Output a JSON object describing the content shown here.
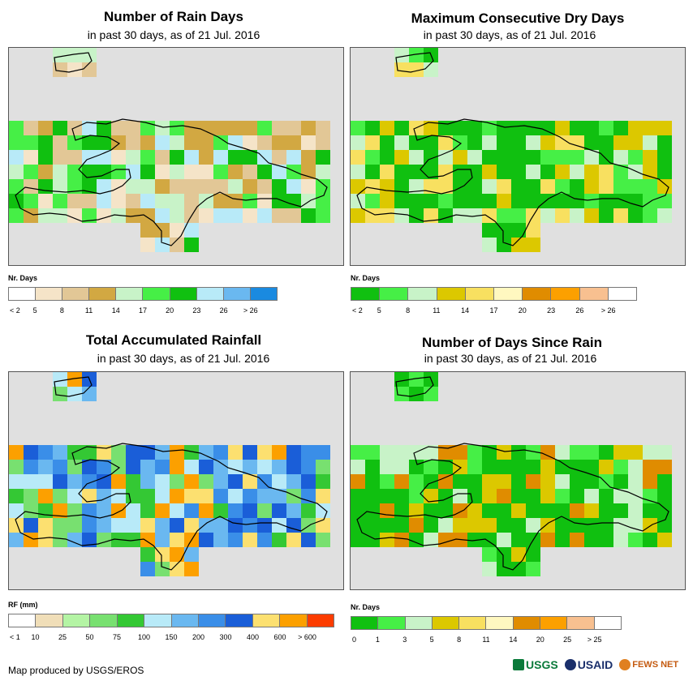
{
  "panels": [
    {
      "title": "Number of Rain Days",
      "subtitle": "in past 30 days, as of 21 Jul. 2016",
      "legend": {
        "title": "Nr. Days",
        "colors": [
          "#ffffff",
          "#f5e4c8",
          "#e2c796",
          "#d2a842",
          "#c8f3c8",
          "#46ef46",
          "#10c010",
          "#b8eaf8",
          "#6ab8f0",
          "#1a8ae0"
        ],
        "labels": [
          "< 2",
          "5",
          "8",
          "11",
          "14",
          "17",
          "20",
          "23",
          "26",
          "> 26"
        ]
      }
    },
    {
      "title": "Maximum Consecutive Dry Days",
      "subtitle": "in past 30 days, as of 21 Jul. 2016",
      "legend": {
        "title": "Nr. Days",
        "colors": [
          "#10c010",
          "#46ef46",
          "#c8f3c8",
          "#dcc800",
          "#f8e060",
          "#fff8c0",
          "#e08c00",
          "#fca000",
          "#f8c090",
          "#ffffff"
        ],
        "labels": [
          "< 2",
          "5",
          "8",
          "11",
          "14",
          "17",
          "20",
          "23",
          "26",
          "> 26"
        ]
      }
    },
    {
      "title": "Total Accumulated Rainfall",
      "subtitle": "in past 30 days, as of 21 Jul. 2016",
      "legend": {
        "title": "RF (mm)",
        "colors": [
          "#ffffff",
          "#f0deb8",
          "#b4f4a4",
          "#78e070",
          "#34c834",
          "#b8eaf8",
          "#6ab8f0",
          "#3a8ee8",
          "#1a5ed8",
          "#fce070",
          "#fca000",
          "#fc3c00"
        ],
        "labels": [
          "< 1",
          "10",
          "25",
          "50",
          "75",
          "100",
          "150",
          "200",
          "300",
          "400",
          "600",
          "> 600"
        ]
      }
    },
    {
      "title": "Number of Days Since Rain",
      "subtitle": "in past 30 days, as of 21 Jul. 2016",
      "legend": {
        "title": "Nr. Days",
        "colors": [
          "#10c010",
          "#46ef46",
          "#c8f3c8",
          "#dcc800",
          "#f8e060",
          "#fff8c0",
          "#e08c00",
          "#fca000",
          "#f8c090",
          "#ffffff"
        ],
        "labels": [
          "0",
          "1",
          "3",
          "5",
          "8",
          "11",
          "14",
          "20",
          "25",
          "> 25"
        ]
      }
    }
  ],
  "footer": {
    "credit": "Map produced by USGS/EROS",
    "logos": [
      "USGS",
      "USAID",
      "FEWS NET"
    ]
  },
  "map_background": "#e0e0e0"
}
